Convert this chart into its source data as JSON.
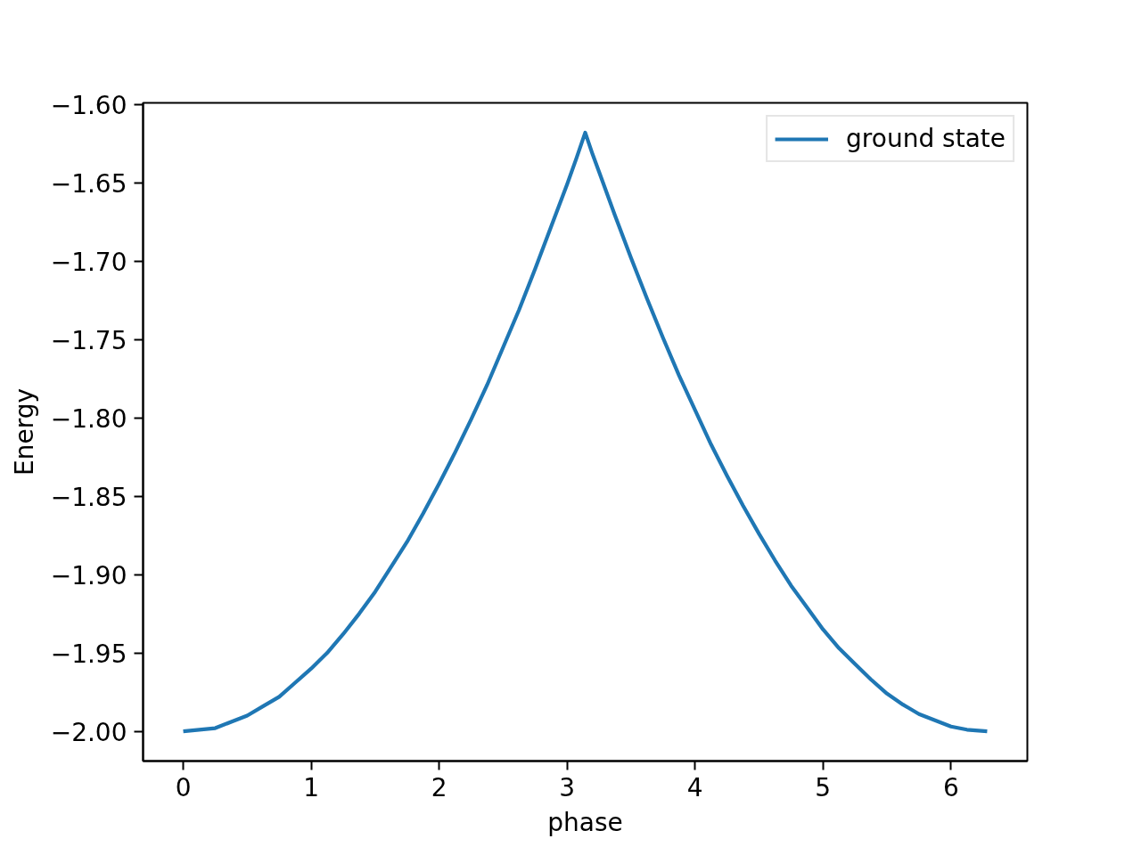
{
  "chart_data": {
    "type": "line",
    "xlabel": "phase",
    "ylabel": "Energy",
    "x": [
      0,
      0.125,
      0.25,
      0.375,
      0.5,
      0.625,
      0.75,
      0.875,
      1.0,
      1.125,
      1.25,
      1.375,
      1.5,
      1.625,
      1.75,
      1.875,
      2.0,
      2.125,
      2.25,
      2.375,
      2.5,
      2.625,
      2.75,
      2.875,
      3.0,
      3.07,
      3.1416,
      3.2,
      3.25,
      3.375,
      3.5,
      3.625,
      3.75,
      3.875,
      4.0,
      4.125,
      4.25,
      4.375,
      4.5,
      4.625,
      4.75,
      4.875,
      5.0,
      5.125,
      5.25,
      5.375,
      5.5,
      5.625,
      5.75,
      5.875,
      6.0,
      6.125,
      6.283
    ],
    "series": [
      {
        "name": "ground state",
        "color": "#1f77b4",
        "values": [
          -2.0,
          -1.999,
          -1.998,
          -1.994,
          -1.99,
          -1.984,
          -1.978,
          -1.969,
          -1.96,
          -1.95,
          -1.938,
          -1.925,
          -1.911,
          -1.895,
          -1.879,
          -1.861,
          -1.842,
          -1.822,
          -1.801,
          -1.779,
          -1.755,
          -1.731,
          -1.705,
          -1.678,
          -1.651,
          -1.635,
          -1.618,
          -1.632,
          -1.643,
          -1.671,
          -1.698,
          -1.724,
          -1.749,
          -1.773,
          -1.795,
          -1.817,
          -1.837,
          -1.856,
          -1.874,
          -1.891,
          -1.907,
          -1.921,
          -1.935,
          -1.947,
          -1.957,
          -1.967,
          -1.976,
          -1.983,
          -1.989,
          -1.993,
          -1.997,
          -1.999,
          -2.0
        ]
      }
    ],
    "xlim": [
      -0.314,
      6.597
    ],
    "ylim": [
      -2.019,
      -1.599
    ],
    "xticks": [
      0,
      1,
      2,
      3,
      4,
      5,
      6
    ],
    "yticks": [
      {
        "value": -2.0,
        "label": "−2.00"
      },
      {
        "value": -1.95,
        "label": "−1.95"
      },
      {
        "value": -1.9,
        "label": "−1.90"
      },
      {
        "value": -1.85,
        "label": "−1.85"
      },
      {
        "value": -1.8,
        "label": "−1.80"
      },
      {
        "value": -1.75,
        "label": "−1.75"
      },
      {
        "value": -1.7,
        "label": "−1.70"
      },
      {
        "value": -1.65,
        "label": "−1.65"
      },
      {
        "value": -1.6,
        "label": "−1.60"
      }
    ],
    "grid": false,
    "legend": "top right",
    "line_style": "solid"
  }
}
